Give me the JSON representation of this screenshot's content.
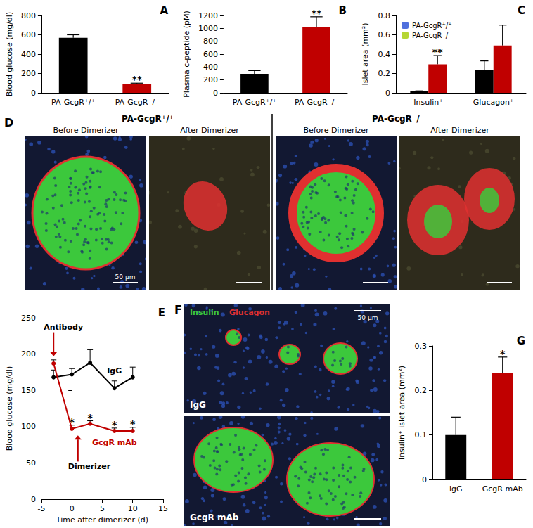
{
  "chart_data": [
    {
      "panel": "A",
      "type": "bar",
      "y_label": "Blood glucose (mg/dl)",
      "categories": [
        "PA-GcgR⁺/⁺",
        "PA-GcgR⁻/⁻"
      ],
      "values": [
        570,
        90
      ],
      "errors": [
        30,
        10
      ],
      "significance": [
        null,
        "**"
      ],
      "colors": [
        "#000000",
        "#c00000"
      ],
      "ylim": [
        0,
        800
      ],
      "yticks": [
        0,
        200,
        400,
        600,
        800
      ],
      "grid": false
    },
    {
      "panel": "B",
      "type": "bar",
      "y_label": "Plasma c-peptide (pM)",
      "categories": [
        "PA-GcgR⁺/⁺",
        "PA-GcgR⁻/⁻"
      ],
      "values": [
        295,
        1020
      ],
      "errors": [
        50,
        160
      ],
      "significance": [
        null,
        "**"
      ],
      "colors": [
        "#000000",
        "#c00000"
      ],
      "ylim": [
        0,
        1200
      ],
      "yticks": [
        0,
        200,
        400,
        600,
        800,
        1000,
        1200
      ],
      "grid": false
    },
    {
      "panel": "C",
      "type": "bar",
      "y_label": "Islet area (mm²)",
      "categories": [
        "Insulin⁺",
        "Glucagon⁺"
      ],
      "series": [
        {
          "name": "PA-GcgR⁺/⁺",
          "color": "#000000",
          "values": [
            0.015,
            0.24
          ],
          "errors": [
            0.005,
            0.09
          ],
          "significance": [
            null,
            null
          ]
        },
        {
          "name": "PA-GcgR⁻/⁻",
          "color": "#c00000",
          "values": [
            0.295,
            0.49
          ],
          "errors": [
            0.09,
            0.21
          ],
          "significance": [
            "**",
            null
          ]
        }
      ],
      "legend": "upper left",
      "ylim": [
        0,
        0.8
      ],
      "yticks": [
        0,
        0.2,
        0.4,
        0.6,
        0.8
      ],
      "grid": false
    },
    {
      "panel": "E",
      "type": "line",
      "x_label": "Time after dimerizer (d)",
      "y_label": "Blood glucose (mg/dl)",
      "marker": "circle",
      "series": [
        {
          "name": "IgG",
          "color": "#000000",
          "x": [
            -3,
            0,
            3,
            7,
            10
          ],
          "values": [
            168,
            172,
            188,
            153,
            168
          ],
          "errors": [
            10,
            8,
            18,
            10,
            14
          ],
          "significance": [
            null,
            null,
            null,
            null,
            null
          ]
        },
        {
          "name": "GcgR mAb",
          "color": "#c00000",
          "x": [
            -3,
            0,
            3,
            7,
            10
          ],
          "values": [
            187,
            97,
            104,
            94,
            94
          ],
          "errors": [
            5,
            5,
            4,
            4,
            5
          ],
          "significance": [
            null,
            "*",
            "*",
            "*",
            "*"
          ]
        }
      ],
      "annotations": [
        {
          "text": "Antibody",
          "x": -3,
          "y": 232,
          "arrow_to": [
            -3,
            197
          ]
        },
        {
          "text": "Dimerizer",
          "x": 1,
          "y": 50,
          "arrow_to": [
            1,
            88
          ]
        }
      ],
      "xlim": [
        -5,
        15
      ],
      "xticks": [
        -5,
        0,
        5,
        10,
        15
      ],
      "ylim": [
        0,
        250
      ],
      "yticks": [
        0,
        50,
        100,
        150,
        200,
        250
      ],
      "grid": false
    },
    {
      "panel": "G",
      "type": "bar",
      "y_label": "Insulin⁺ islet area (mm²)",
      "categories": [
        "IgG",
        "GcgR mAb"
      ],
      "values": [
        0.1,
        0.24
      ],
      "errors": [
        0.04,
        0.035
      ],
      "significance": [
        null,
        "*"
      ],
      "colors": [
        "#000000",
        "#c00000"
      ],
      "ylim": [
        0,
        0.3
      ],
      "yticks": [
        0,
        0.1,
        0.2,
        0.3
      ],
      "grid": false
    }
  ],
  "image_panels": [
    {
      "panel": "D",
      "groups": [
        {
          "title": "PA-GcgR⁺/⁺",
          "images": [
            "Before Dimerizer",
            "After Dimerizer"
          ]
        },
        {
          "title": "PA-GcgR⁻/⁻",
          "images": [
            "Before Dimerizer",
            "After Dimerizer"
          ]
        }
      ],
      "scale_bar": "50 µm"
    },
    {
      "panel": "F",
      "channels": [
        {
          "name": "Insulin",
          "color": "#3cc83c"
        },
        {
          "name": "Glucagon",
          "color": "#e03030"
        }
      ],
      "images": [
        "IgG",
        "GcgR mAb"
      ],
      "scale_bar": "50 µm"
    }
  ]
}
